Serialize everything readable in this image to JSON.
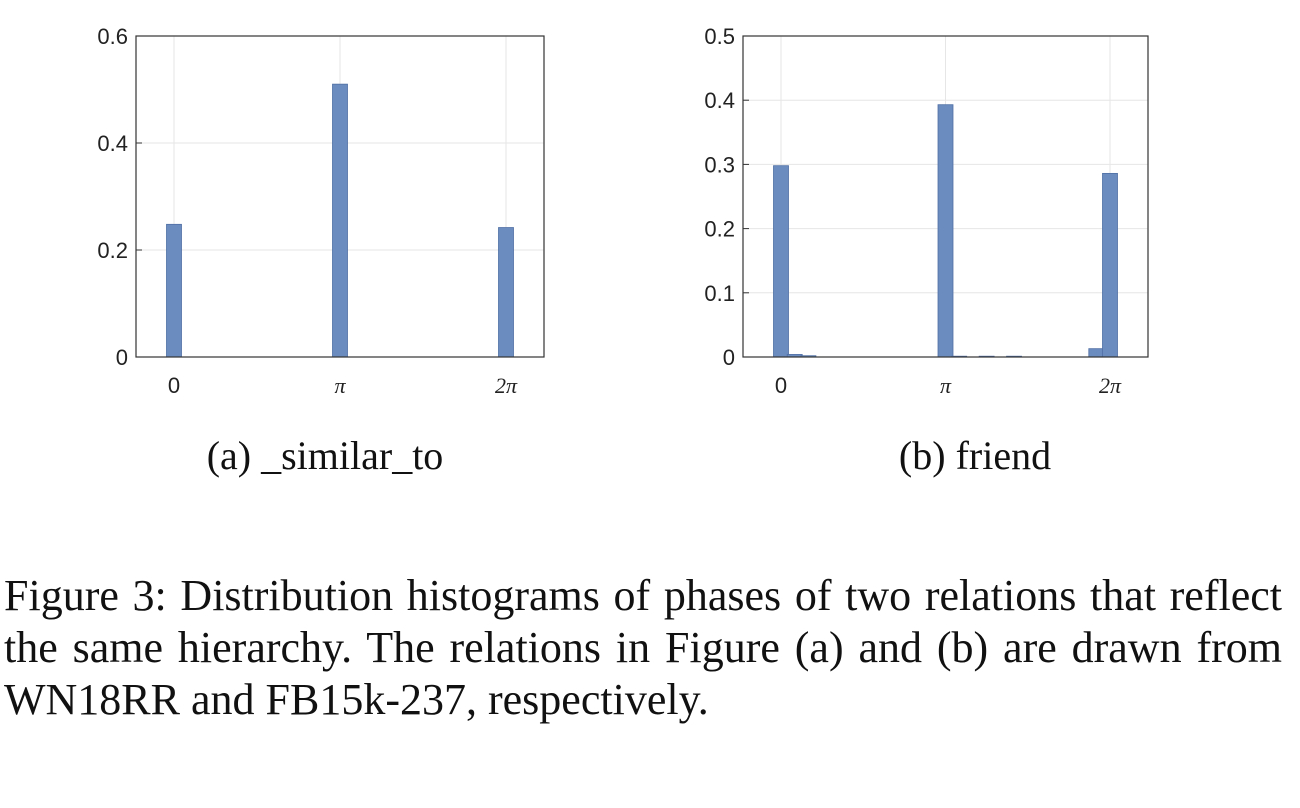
{
  "chart_data": [
    {
      "type": "bar",
      "panel_caption": {
        "tag": "(a)",
        "relation": "_similar_to"
      },
      "x_ticks": [
        "0",
        "π",
        "2π"
      ],
      "y_ticks": [
        "0",
        "0.2",
        "0.4",
        "0.6"
      ],
      "ylim": [
        0,
        0.6
      ],
      "xlim": [
        0,
        6.2832
      ],
      "grid": true,
      "bar_color": "#6b8cbf",
      "bars": [
        {
          "x": 0.0,
          "value": 0.248
        },
        {
          "x": 3.1416,
          "value": 0.51
        },
        {
          "x": 6.2832,
          "value": 0.242
        }
      ]
    },
    {
      "type": "bar",
      "panel_caption": {
        "tag": "(b)",
        "relation": "friend"
      },
      "x_ticks": [
        "0",
        "π",
        "2π"
      ],
      "y_ticks": [
        "0",
        "0.1",
        "0.2",
        "0.3",
        "0.4",
        "0.5"
      ],
      "ylim": [
        0,
        0.5
      ],
      "xlim": [
        0,
        6.2832
      ],
      "grid": true,
      "bar_color": "#6b8cbf",
      "bars": [
        {
          "x": 0.0,
          "value": 0.298
        },
        {
          "x": 0.2618,
          "value": 0.004
        },
        {
          "x": 0.5236,
          "value": 0.002
        },
        {
          "x": 3.1416,
          "value": 0.393
        },
        {
          "x": 3.4034,
          "value": 0.001
        },
        {
          "x": 3.927,
          "value": 0.001
        },
        {
          "x": 4.4506,
          "value": 0.001
        },
        {
          "x": 6.0214,
          "value": 0.013
        },
        {
          "x": 6.2832,
          "value": 0.286
        }
      ]
    }
  ],
  "caption": "Figure 3: Distribution histograms of phases of two relations that reflect the same hierarchy. The relations in Figure (a) and (b) are drawn from WN18RR and FB15k-237, respectively."
}
